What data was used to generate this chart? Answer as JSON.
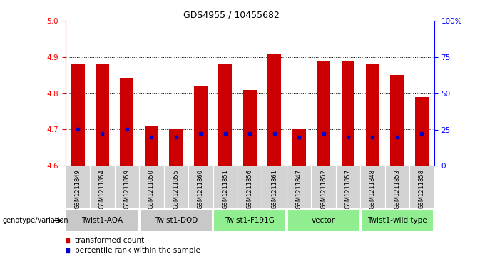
{
  "title": "GDS4955 / 10455682",
  "samples": [
    "GSM1211849",
    "GSM1211854",
    "GSM1211859",
    "GSM1211850",
    "GSM1211855",
    "GSM1211860",
    "GSM1211851",
    "GSM1211856",
    "GSM1211861",
    "GSM1211847",
    "GSM1211852",
    "GSM1211857",
    "GSM1211848",
    "GSM1211853",
    "GSM1211858"
  ],
  "bar_values": [
    4.88,
    4.88,
    4.84,
    4.71,
    4.7,
    4.82,
    4.88,
    4.81,
    4.91,
    4.7,
    4.89,
    4.89,
    4.88,
    4.85,
    4.79
  ],
  "percentile_values": [
    4.7,
    4.69,
    4.7,
    4.68,
    4.68,
    4.69,
    4.69,
    4.69,
    4.69,
    4.68,
    4.69,
    4.68,
    4.68,
    4.68,
    4.69
  ],
  "bar_bottom": 4.6,
  "ylim_left": [
    4.6,
    5.0
  ],
  "ylim_right": [
    0,
    100
  ],
  "yticks_left": [
    4.6,
    4.7,
    4.8,
    4.9,
    5.0
  ],
  "yticks_right": [
    0,
    25,
    50,
    75,
    100
  ],
  "ytick_labels_right": [
    "0",
    "25",
    "50",
    "75",
    "100%"
  ],
  "bar_color": "#cc0000",
  "percentile_color": "#0000cc",
  "groups": [
    {
      "label": "Twist1-AQA",
      "indices": [
        0,
        1,
        2
      ],
      "color": "#c8c8c8"
    },
    {
      "label": "Twist1-DQD",
      "indices": [
        3,
        4,
        5
      ],
      "color": "#c8c8c8"
    },
    {
      "label": "Twist1-F191G",
      "indices": [
        6,
        7,
        8
      ],
      "color": "#90ee90"
    },
    {
      "label": "vector",
      "indices": [
        9,
        10,
        11
      ],
      "color": "#90ee90"
    },
    {
      "label": "Twist1-wild type",
      "indices": [
        12,
        13,
        14
      ],
      "color": "#90ee90"
    }
  ],
  "genotype_label": "genotype/variation",
  "legend_red": "transformed count",
  "legend_blue": "percentile rank within the sample",
  "background_color": "#ffffff",
  "bar_width": 0.55,
  "fig_width": 6.8,
  "fig_height": 3.63
}
